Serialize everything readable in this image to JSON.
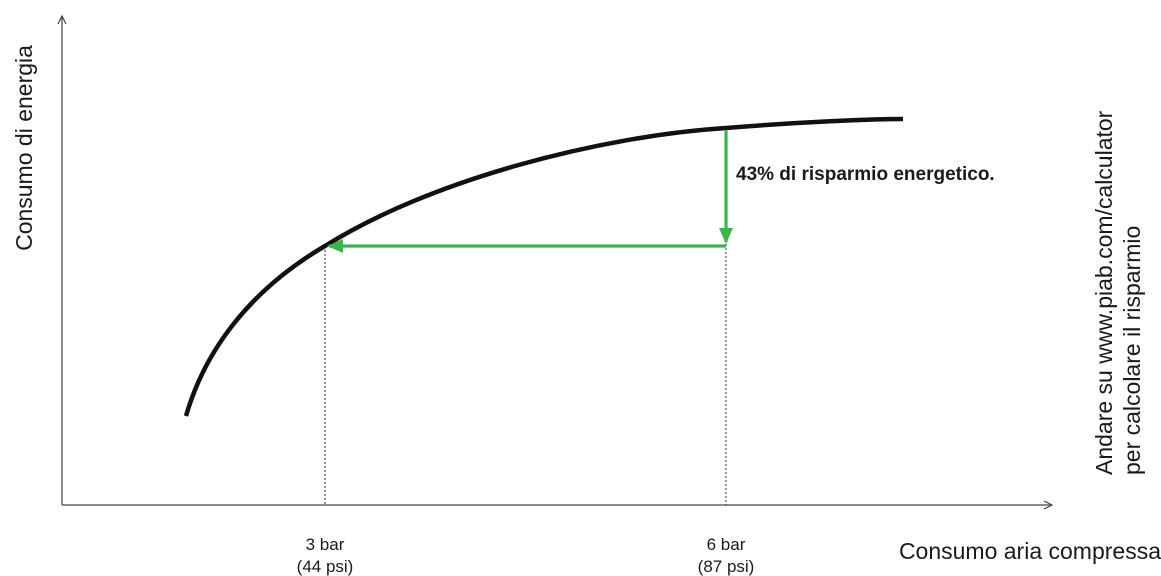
{
  "chart_data": {
    "type": "line",
    "title": "",
    "ylabel": "Consumo di energia",
    "xlabel": "Consumo aria compressa",
    "side_note": [
      "Andare su www.piab.com/calculator",
      "per calcolare il risparmio"
    ],
    "ticks": [
      {
        "line1": "3 bar",
        "line2": "(44 psi)"
      },
      {
        "line1": "6 bar",
        "line2": "(87 psi)"
      }
    ],
    "annotation": "43% di risparmio energetico.",
    "colors": {
      "curve": "#111111",
      "arrow": "#3cb54a",
      "axis": "#444444"
    },
    "grid": false,
    "legend": "none"
  }
}
